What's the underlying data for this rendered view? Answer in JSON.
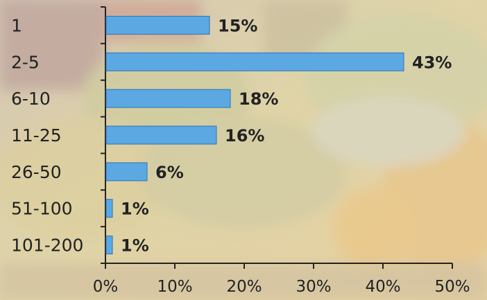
{
  "chart_data": {
    "type": "bar",
    "orientation": "horizontal",
    "categories": [
      "1",
      "2-5",
      "6-10",
      "11-25",
      "26-50",
      "51-100",
      "101-200"
    ],
    "values": [
      15,
      43,
      18,
      16,
      6,
      1,
      1
    ],
    "data_labels": [
      "15%",
      "43%",
      "18%",
      "16%",
      "6%",
      "1%",
      "1%"
    ],
    "x_ticks": [
      "0%",
      "10%",
      "20%",
      "30%",
      "40%",
      "50%"
    ],
    "xlim": [
      0,
      50
    ],
    "title": "",
    "xlabel": "",
    "ylabel": "",
    "grid": false,
    "legend": "none",
    "colors": {
      "bar_fill": "#5ba8e3",
      "bar_stroke": "#2f72b3",
      "axis": "#222222",
      "text": "#222222"
    }
  }
}
